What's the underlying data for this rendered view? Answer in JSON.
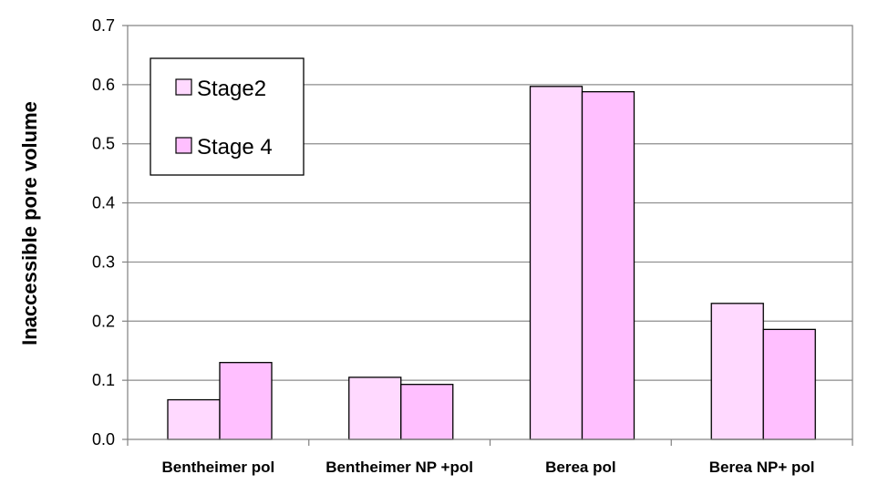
{
  "chart_data": {
    "type": "bar",
    "title": "",
    "xlabel": "",
    "ylabel": "Inaccessible pore volume",
    "ylim": [
      0,
      0.7
    ],
    "yticks": [
      "0.0",
      "0.1",
      "0.2",
      "0.3",
      "0.4",
      "0.5",
      "0.6",
      "0.7"
    ],
    "grid": true,
    "legend_position": "top-left",
    "categories": [
      "Bentheimer pol",
      "Bentheimer NP +pol",
      "Berea pol",
      "Berea NP+ pol"
    ],
    "series": [
      {
        "name": "Stage2",
        "values": [
          0.067,
          0.105,
          0.597,
          0.23
        ],
        "color": "#ffd9ff"
      },
      {
        "name": "Stage 4",
        "values": [
          0.13,
          0.093,
          0.588,
          0.186
        ],
        "color": "#ffbfff"
      }
    ]
  }
}
